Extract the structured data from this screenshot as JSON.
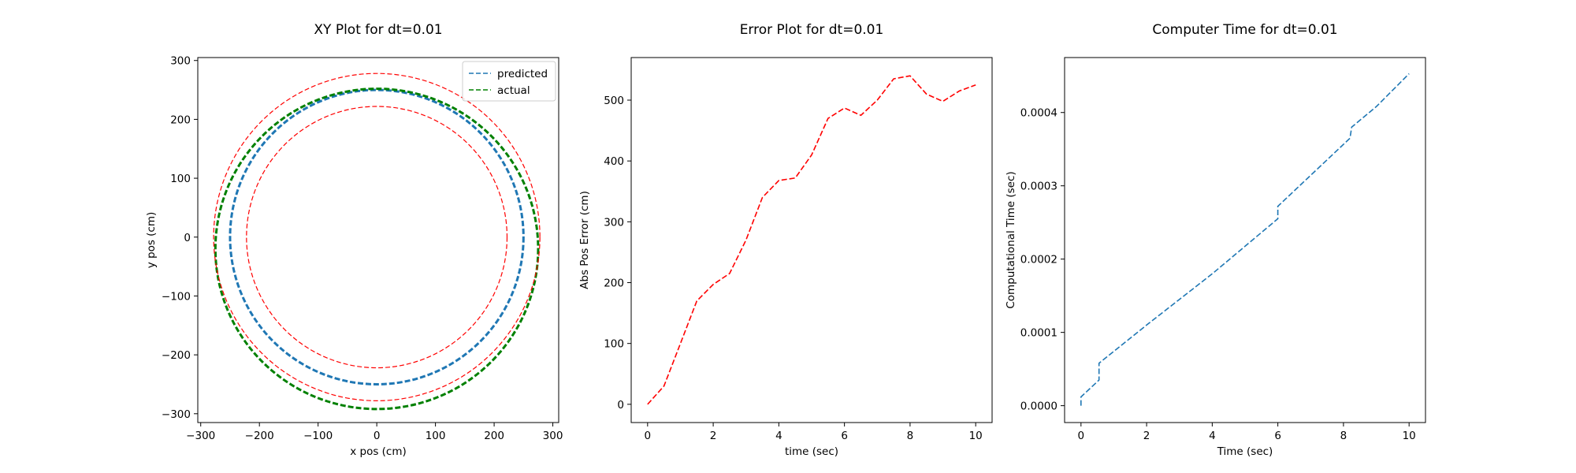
{
  "chart_data": [
    {
      "type": "line",
      "title": "XY Plot for dt=0.01",
      "xlabel": "x pos (cm)",
      "ylabel": "y pos (cm)",
      "xlim": [
        -305,
        310
      ],
      "ylim": [
        -315,
        305
      ],
      "xticks": [
        -300,
        -200,
        -100,
        0,
        100,
        200,
        300
      ],
      "yticks": [
        -300,
        -200,
        -100,
        0,
        100,
        200,
        300
      ],
      "legend": "top-right",
      "series": [
        {
          "name": "predicted",
          "color": "#1f77b4",
          "style": "dashed",
          "shape": "ellipse",
          "center": [
            0,
            0
          ],
          "rx": 250,
          "ry": 250
        },
        {
          "name": "actual",
          "color": "#008000",
          "style": "dashed",
          "shape": "ellipse",
          "center": [
            0,
            -20
          ],
          "rx": 275,
          "ry": 272
        },
        {
          "color": "#ff0000",
          "style": "dashed",
          "shape": "ellipse",
          "center": [
            0,
            0
          ],
          "rx": 278,
          "ry": 278
        },
        {
          "color": "#ff0000",
          "style": "dashed",
          "shape": "ellipse",
          "center": [
            0,
            0
          ],
          "rx": 222,
          "ry": 222
        }
      ]
    },
    {
      "type": "line",
      "title": "Error Plot for dt=0.01",
      "xlabel": "time (sec)",
      "ylabel": "Abs Pos Error (cm)",
      "xlim": [
        -0.5,
        10.5
      ],
      "ylim": [
        -30,
        570
      ],
      "xticks": [
        0,
        2,
        4,
        6,
        8,
        10
      ],
      "yticks": [
        0,
        100,
        200,
        300,
        400,
        500
      ],
      "series": [
        {
          "color": "#ff0000",
          "style": "dashed",
          "x": [
            0,
            0.5,
            1,
            1.5,
            2,
            2.5,
            3,
            3.5,
            4,
            4.5,
            5,
            5.5,
            6,
            6.5,
            7,
            7.5,
            8,
            8.5,
            9,
            9.5,
            10
          ],
          "y": [
            0,
            30,
            100,
            170,
            197,
            215,
            270,
            340,
            368,
            372,
            410,
            470,
            487,
            475,
            500,
            535,
            540,
            510,
            498,
            515,
            525
          ]
        }
      ]
    },
    {
      "type": "line",
      "title": "Computer Time for dt=0.01",
      "xlabel": "Time (sec)",
      "ylabel": "Computational Time (sec)",
      "xlim": [
        -0.5,
        10.5
      ],
      "ylim": [
        -2.3e-05,
        0.000475
      ],
      "xticks": [
        0,
        2,
        4,
        6,
        8,
        10
      ],
      "yticks": [
        0,
        0.0001,
        0.0002,
        0.0003,
        0.0004
      ],
      "ytick_labels": [
        "0.0000",
        "0.0001",
        "0.0002",
        "0.0003",
        "0.0004"
      ],
      "series": [
        {
          "color": "#1f77b4",
          "style": "dashed",
          "x": [
            0,
            0,
            0.55,
            0.55,
            2,
            4,
            6,
            6,
            8.2,
            8.25,
            9,
            10
          ],
          "y": [
            0,
            1.2e-05,
            3.5e-05,
            5.8e-05,
            0.00011,
            0.00018,
            0.000255,
            0.000272,
            0.000365,
            0.00038,
            0.000408,
            0.000453
          ]
        }
      ]
    }
  ]
}
